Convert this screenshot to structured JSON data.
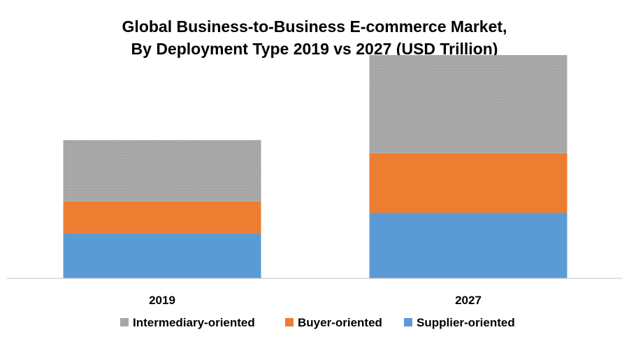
{
  "chart_data": {
    "type": "bar",
    "stacked": true,
    "title_lines": [
      "Global Business-to-Business E-commerce Market,",
      "By Deployment Type 2019 vs 2027 (USD Trillion)"
    ],
    "categories": [
      "2019",
      "2027"
    ],
    "series": [
      {
        "name": "Supplier-oriented",
        "values": [
          4.4,
          6.4
        ],
        "color": "#5b9bd5"
      },
      {
        "name": "Buyer-oriented",
        "values": [
          3.1,
          5.8
        ],
        "color": "#ed7d31"
      },
      {
        "name": "Intermediary-oriented",
        "values": [
          6.0,
          9.6
        ],
        "color": "#a5a5a5"
      }
    ],
    "legend_order": [
      "Intermediary-oriented",
      "Buyer-oriented",
      "Supplier-oriented"
    ],
    "ylim": [
      0,
      22
    ],
    "gridlines": false,
    "y_axis_visible": false,
    "legend_position": "bottom",
    "xlabel": "",
    "ylabel": ""
  }
}
